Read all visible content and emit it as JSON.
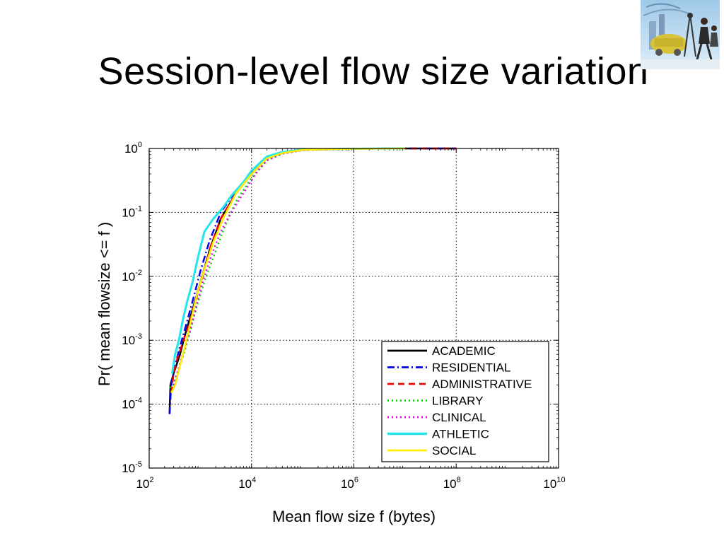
{
  "slide": {
    "title": "Session-level flow size variation"
  },
  "decor": {
    "corner_image": "collage-icon"
  },
  "chart_data": {
    "type": "line",
    "xlabel": "Mean flow size f (bytes)",
    "ylabel": "Pr( mean flowsize <= f )",
    "xscale": "log",
    "yscale": "log",
    "xlim": [
      100,
      10000000000
    ],
    "ylim": [
      1e-05,
      1
    ],
    "xticks": [
      "10^2",
      "10^4",
      "10^6",
      "10^8",
      "10^10"
    ],
    "yticks": [
      "10^-5",
      "10^-4",
      "10^-3",
      "10^-2",
      "10^-1",
      "10^0"
    ],
    "grid": true,
    "legend_position": "bottom-right",
    "series": [
      {
        "name": "ACADEMIC",
        "color": "#000000",
        "dash": "solid",
        "x": [
          250,
          260,
          300,
          400,
          500,
          700,
          1000,
          1500,
          2500,
          5000,
          10000,
          20000,
          40000,
          100000,
          1000000,
          10000000,
          100000000
        ],
        "y": [
          7e-05,
          0.0002,
          0.0003,
          0.0006,
          0.0012,
          0.003,
          0.008,
          0.025,
          0.08,
          0.2,
          0.4,
          0.7,
          0.85,
          0.95,
          0.99,
          1,
          1
        ]
      },
      {
        "name": "RESIDENTIAL",
        "color": "#0000ee",
        "dash": "dashdot",
        "x": [
          250,
          270,
          320,
          400,
          500,
          700,
          1000,
          1500,
          2500,
          5000,
          10000,
          20000,
          40000,
          100000,
          1000000,
          10000000,
          100000000
        ],
        "y": [
          7e-05,
          0.0002,
          0.0004,
          0.0008,
          0.0015,
          0.004,
          0.012,
          0.035,
          0.1,
          0.22,
          0.42,
          0.72,
          0.86,
          0.95,
          0.99,
          1,
          1
        ]
      },
      {
        "name": "ADMINISTRATIVE",
        "color": "#ee0000",
        "dash": "dashed",
        "x": [
          270,
          300,
          350,
          450,
          600,
          800,
          1100,
          1600,
          2500,
          5000,
          10000,
          20000,
          40000,
          100000,
          1000000,
          10000000,
          100000000
        ],
        "y": [
          0.00015,
          0.0003,
          0.0005,
          0.0009,
          0.0018,
          0.004,
          0.01,
          0.03,
          0.08,
          0.2,
          0.4,
          0.7,
          0.85,
          0.95,
          0.99,
          1,
          1
        ]
      },
      {
        "name": "LIBRARY",
        "color": "#00dd00",
        "dash": "dotted",
        "x": [
          250,
          300,
          400,
          500,
          650,
          900,
          1300,
          2000,
          3000,
          5000,
          10000,
          20000,
          40000,
          100000,
          1000000,
          10000000
        ],
        "y": [
          0.00018,
          0.0002,
          0.0004,
          0.0007,
          0.0015,
          0.004,
          0.01,
          0.025,
          0.06,
          0.15,
          0.35,
          0.65,
          0.83,
          0.94,
          0.99,
          1
        ]
      },
      {
        "name": "CLINICAL",
        "color": "#ee00ee",
        "dash": "dotted",
        "x": [
          300,
          350,
          450,
          600,
          800,
          1100,
          1600,
          2500,
          4000,
          7000,
          12000,
          20000,
          40000,
          100000,
          1000000,
          10000000
        ],
        "y": [
          0.0002,
          0.0003,
          0.0006,
          0.0012,
          0.003,
          0.008,
          0.02,
          0.05,
          0.1,
          0.2,
          0.4,
          0.65,
          0.83,
          0.94,
          0.99,
          1
        ]
      },
      {
        "name": "ATHLETIC",
        "color": "#22e5ee",
        "dash": "solid",
        "x": [
          280,
          320,
          380,
          450,
          550,
          700,
          900,
          1200,
          1800,
          2800,
          4000,
          7000,
          10000,
          20000,
          40000,
          100000,
          1000000,
          10000000
        ],
        "y": [
          0.0003,
          0.0006,
          0.001,
          0.002,
          0.004,
          0.008,
          0.02,
          0.05,
          0.08,
          0.12,
          0.18,
          0.3,
          0.45,
          0.75,
          0.88,
          0.96,
          0.99,
          1
        ]
      },
      {
        "name": "SOCIAL",
        "color": "#ffee00",
        "dash": "solid",
        "x": [
          270,
          320,
          400,
          500,
          650,
          850,
          1200,
          1800,
          3000,
          5000,
          10000,
          20000,
          40000,
          100000,
          1000000,
          10000000
        ],
        "y": [
          0.00015,
          0.0002,
          0.0004,
          0.0008,
          0.002,
          0.005,
          0.013,
          0.035,
          0.09,
          0.2,
          0.4,
          0.7,
          0.85,
          0.95,
          0.99,
          1
        ]
      }
    ]
  }
}
